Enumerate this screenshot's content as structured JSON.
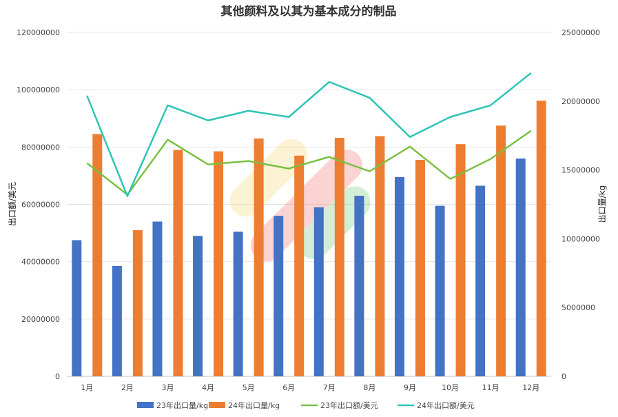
{
  "chart_data": {
    "type": "bar",
    "title": "其他颜料及以其为基本成分的制品",
    "categories": [
      "1月",
      "2月",
      "3月",
      "4月",
      "5月",
      "6月",
      "7月",
      "8月",
      "9月",
      "10月",
      "11月",
      "12月"
    ],
    "y_left_label": "出口额/美元",
    "y_right_label": "出口量/kg",
    "y_left_ticks": [
      "0",
      "20000000",
      "40000000",
      "60000000",
      "80000000",
      "100000000",
      "120000000"
    ],
    "y_right_ticks": [
      "0",
      "5000000",
      "10000000",
      "15000000",
      "20000000",
      "25000000"
    ],
    "y_left_range": [
      0,
      120000000
    ],
    "y_right_range": [
      0,
      25000000
    ],
    "series": [
      {
        "name": "23年出口量/kg",
        "kind": "bar",
        "axis": "left",
        "color": "#4472C4",
        "values": [
          47500000,
          38500000,
          54000000,
          49000000,
          50500000,
          56000000,
          59000000,
          63000000,
          69500000,
          59500000,
          66500000,
          76000000
        ]
      },
      {
        "name": "24年出口量/kg",
        "kind": "bar",
        "axis": "left",
        "color": "#ED7D31",
        "values": [
          84500000,
          51000000,
          79000000,
          78500000,
          83000000,
          77000000,
          83200000,
          83800000,
          75500000,
          81000000,
          87500000,
          96200000
        ]
      },
      {
        "name": "23年出口额/美元",
        "kind": "line",
        "axis": "right",
        "color": "#7AC143",
        "values": [
          15500000,
          13200000,
          17200000,
          15400000,
          15650000,
          15100000,
          15950000,
          14900000,
          16700000,
          14350000,
          15800000,
          17850000
        ]
      },
      {
        "name": "24年出口额/美元",
        "kind": "line",
        "axis": "right",
        "color": "#2EC4B6",
        "values": [
          20400000,
          13100000,
          19700000,
          18600000,
          19300000,
          18850000,
          21400000,
          20250000,
          17400000,
          18850000,
          19700000,
          22050000
        ]
      }
    ],
    "grid": true,
    "legend_position": "bottom"
  }
}
